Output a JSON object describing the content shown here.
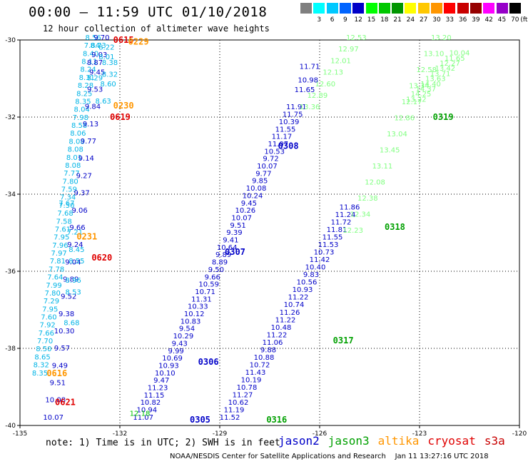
{
  "title": "00:00 – 11:59 UTC 01/10/2018",
  "subtitle": "12 hour collection of altimeter wave heights",
  "legend": {
    "unit_label": "(ft)",
    "entries": [
      {
        "label": "",
        "color": "#7f7f7f"
      },
      {
        "label": "3",
        "color": "#00ffff"
      },
      {
        "label": "6",
        "color": "#00c8ff"
      },
      {
        "label": "9",
        "color": "#0064ff"
      },
      {
        "label": "12",
        "color": "#0000c8"
      },
      {
        "label": "15",
        "color": "#00ff00"
      },
      {
        "label": "18",
        "color": "#00c800"
      },
      {
        "label": "21",
        "color": "#009600"
      },
      {
        "label": "24",
        "color": "#ffff00"
      },
      {
        "label": "27",
        "color": "#ffc800"
      },
      {
        "label": "30",
        "color": "#ff9600"
      },
      {
        "label": "33",
        "color": "#ff0000"
      },
      {
        "label": "36",
        "color": "#c80000"
      },
      {
        "label": "39",
        "color": "#960000"
      },
      {
        "label": "42",
        "color": "#ff00ff"
      },
      {
        "label": "45",
        "color": "#9600c8"
      },
      {
        "label": "70",
        "color": "#000000"
      }
    ]
  },
  "axes": {
    "lon_ticks": [
      "-135",
      "-132",
      "-129",
      "-126",
      "-123",
      "-120"
    ],
    "lat_ticks": [
      "-30",
      "-32",
      "-34",
      "-36",
      "-38",
      "-40"
    ]
  },
  "colors": {
    "jason2": "#0000c8",
    "jason3": "#00a000",
    "jason3_light": "#80ff80",
    "altika": "#ff9600",
    "cryosat": "#e00000",
    "s3a": "#c80000",
    "cyan": "#00b4e6"
  },
  "tracks": [
    {
      "name": "jason2-0305-0308",
      "color": "#0000c8",
      "start": {
        "lon": -131.3,
        "lat": -39.85
      },
      "end": {
        "lon": -126.7,
        "lat": -31.8
      },
      "values": [
        "11.07",
        "10.94",
        "10.82",
        "11.15",
        "11.23",
        "9.47",
        "10.10",
        "10.93",
        "10.69",
        "9.99",
        "9.43",
        "10.29",
        "9.54",
        "10.83",
        "10.12",
        "10.33",
        "11.31",
        "10.71",
        "10.59",
        "9.66",
        "9.50",
        "8.89",
        "9.89",
        "10.64",
        "9.41",
        "9.39",
        "9.51",
        "10.07",
        "10.26",
        "9.45",
        "10.24",
        "10.08",
        "9.85",
        "9.77",
        "10.07",
        "9.72",
        "10.53",
        "11.07",
        "11.17",
        "11.55",
        "10.39",
        "11.75",
        "11.91"
      ]
    },
    {
      "name": "jason2-0316-0318",
      "color": "#0000c8",
      "start": {
        "lon": -128.7,
        "lat": -39.85
      },
      "end": {
        "lon": -125.1,
        "lat": -34.4
      },
      "values": [
        "11.52",
        "11.19",
        "10.62",
        "11.27",
        "10.78",
        "10.19",
        "11.43",
        "10.72",
        "10.88",
        "9.88",
        "11.06",
        "11.22",
        "10.48",
        "11.22",
        "11.26",
        "10.74",
        "11.22",
        "10.93",
        "10.56",
        "9.83",
        "10.40",
        "11.42",
        "10.73",
        "11.53",
        "11.55",
        "11.81",
        "11.72",
        "11.24",
        "11.86"
      ]
    },
    {
      "name": "jason3-0317-0318",
      "color": "#00a000",
      "start": {
        "lon": -126.55,
        "lat": -39.85
      },
      "end": {
        "lon": -125.4,
        "lat": -34.6
      },
      "values": []
    },
    {
      "name": "jason3-0318-0319-light",
      "color": "#80ff80",
      "start": {
        "lon": -125.0,
        "lat": -35.0
      },
      "end": {
        "lon": -122.35,
        "lat": -30.0
      },
      "values": [
        "12.23",
        "12.34",
        "12.38",
        "12.08",
        "13.11",
        "13.45",
        "13.04",
        "12.86",
        "12.17",
        "13.34",
        "12.58",
        "13.10",
        "13.20"
      ]
    },
    {
      "name": "jason3-0308-top-light",
      "color": "#80ff80",
      "start": {
        "lon": -126.3,
        "lat": -31.8
      },
      "end": {
        "lon": -124.9,
        "lat": -30.0
      },
      "values": [
        "13.36",
        "12.89",
        "12.60",
        "12.13",
        "12.01",
        "12.97",
        "12.53"
      ]
    },
    {
      "name": "jason2-0319-top",
      "color": "#0000c8",
      "start": {
        "lon": -121.5,
        "lat": -30.1
      },
      "end": {
        "lon": -121.5,
        "lat": -30.1
      },
      "values": []
    },
    {
      "name": "jason3-0319-top-light",
      "color": "#80ff80",
      "start": {
        "lon": -123.1,
        "lat": -31.6
      },
      "end": {
        "lon": -121.8,
        "lat": -30.4
      },
      "values": [
        "13.22",
        "14.25",
        "14.37",
        "14.40",
        "13.63",
        "13.71",
        "13.42",
        "12.27",
        "11.65",
        "10.04"
      ]
    },
    {
      "name": "cyan-0615-0621",
      "color": "#00b4e6",
      "start": {
        "lon": -134.4,
        "lat": -38.7
      },
      "end": {
        "lon": -132.8,
        "lat": -30.0
      },
      "values": [
        "8.35",
        "8.32",
        "8.65",
        "8.50",
        "7.70",
        "7.66",
        "7.92",
        "7.60",
        "7.95",
        "7.29",
        "7.80",
        "7.99",
        "7.64",
        "7.78",
        "7.81",
        "7.97",
        "7.96",
        "7.95",
        "7.61",
        "7.58",
        "7.68",
        "7.50",
        "7.34",
        "7.59",
        "7.80",
        "7.77",
        "8.08",
        "8.01",
        "8.08",
        "8.08",
        "8.06",
        "8.58",
        "7.98",
        "8.04",
        "8.35",
        "8.25",
        "8.28",
        "8.31",
        "8.24",
        "8.11",
        "8.40",
        "7.84",
        "8.56"
      ]
    },
    {
      "name": "blue-0615-0621",
      "color": "#0000c8",
      "start": {
        "lon": -134.0,
        "lat": -39.85
      },
      "end": {
        "lon": -132.55,
        "lat": -30.0
      },
      "values": [
        "10.07",
        "10.08",
        "9.51",
        "9.49",
        "9.57",
        "10.30",
        "9.38",
        "9.52",
        "9.89",
        "9.04",
        "9.24",
        "9.66",
        "9.06",
        "9.37",
        "9.27",
        "9.14",
        "9.77",
        "9.13",
        "9.84",
        "9.53",
        "9.45",
        "9.03",
        "9.70"
      ]
    }
  ],
  "extra_labels": [
    {
      "text": "11.71",
      "lon": -126.3,
      "lat": -30.75,
      "color": "#0000c8"
    },
    {
      "text": "11.65",
      "lon": -126.45,
      "lat": -31.35,
      "color": "#0000c8"
    },
    {
      "text": "10.98",
      "lon": -126.35,
      "lat": -31.1,
      "color": "#0000c8"
    },
    {
      "text": "8.73",
      "lon": -132.65,
      "lat": -30.2,
      "color": "#00b4e6"
    },
    {
      "text": "8.22",
      "lon": -132.4,
      "lat": -30.25,
      "color": "#00b4e6"
    },
    {
      "text": "8.01",
      "lon": -132.4,
      "lat": -30.5,
      "color": "#00b4e6"
    },
    {
      "text": "8.38",
      "lon": -132.3,
      "lat": -30.65,
      "color": "#00b4e6"
    },
    {
      "text": "8.32",
      "lon": -132.3,
      "lat": -30.95,
      "color": "#00b4e6"
    },
    {
      "text": "8.60",
      "lon": -132.35,
      "lat": -31.2,
      "color": "#00b4e6"
    },
    {
      "text": "8.87",
      "lon": -132.75,
      "lat": -30.65,
      "color": "#0000c8"
    },
    {
      "text": "8.29",
      "lon": -132.75,
      "lat": -31.05,
      "color": "#00b4e6"
    },
    {
      "text": "8.63",
      "lon": -132.5,
      "lat": -31.65,
      "color": "#00b4e6"
    },
    {
      "text": "7.67",
      "lon": -133.6,
      "lat": -34.3,
      "color": "#00b4e6"
    },
    {
      "text": "7.21",
      "lon": -133.35,
      "lat": -35.05,
      "color": "#00b4e6"
    },
    {
      "text": "8.45",
      "lon": -133.3,
      "lat": -35.5,
      "color": "#00b4e6"
    },
    {
      "text": "8.55",
      "lon": -133.3,
      "lat": -35.8,
      "color": "#00b4e6"
    },
    {
      "text": "8.96",
      "lon": -133.4,
      "lat": -36.3,
      "color": "#00b4e6"
    },
    {
      "text": "8.53",
      "lon": -133.4,
      "lat": -36.6,
      "color": "#00b4e6"
    },
    {
      "text": "8.68",
      "lon": -133.45,
      "lat": -37.4,
      "color": "#00b4e6"
    }
  ],
  "pass_labels": [
    {
      "text": "0615",
      "lon": -132.2,
      "lat": -30.0,
      "color": "#e00000"
    },
    {
      "text": "0229",
      "lon": -131.75,
      "lat": -30.05,
      "color": "#ff9600"
    },
    {
      "text": "0230",
      "lon": -132.2,
      "lat": -31.7,
      "color": "#ff9600"
    },
    {
      "text": "0619",
      "lon": -132.3,
      "lat": -32.0,
      "color": "#e00000"
    },
    {
      "text": "0231",
      "lon": -133.3,
      "lat": -35.1,
      "color": "#ff9600"
    },
    {
      "text": "0620",
      "lon": -132.85,
      "lat": -35.65,
      "color": "#e00000"
    },
    {
      "text": "0621",
      "lon": -133.95,
      "lat": -39.4,
      "color": "#e00000"
    },
    {
      "text": "0616",
      "lon": -134.2,
      "lat": -38.65,
      "color": "#ff9600"
    },
    {
      "text": "0305",
      "lon": -129.9,
      "lat": -39.85,
      "color": "#0000c8"
    },
    {
      "text": "0306",
      "lon": -129.65,
      "lat": -38.35,
      "color": "#0000c8"
    },
    {
      "text": "0307",
      "lon": -128.85,
      "lat": -35.5,
      "color": "#0000c8"
    },
    {
      "text": "0308",
      "lon": -127.25,
      "lat": -32.75,
      "color": "#0000c8"
    },
    {
      "text": "0316",
      "lon": -127.6,
      "lat": -39.85,
      "color": "#00a000"
    },
    {
      "text": "0317",
      "lon": -125.6,
      "lat": -37.8,
      "color": "#00a000"
    },
    {
      "text": "0318",
      "lon": -124.05,
      "lat": -34.85,
      "color": "#00a000"
    },
    {
      "text": "0319",
      "lon": -122.6,
      "lat": -32.0,
      "color": "#00a000"
    }
  ],
  "note": "note: 1) Time is in UTC; 2) SWH is in feet",
  "satellites": [
    {
      "label": "jason2",
      "color": "#0000c8"
    },
    {
      "label": "jason3",
      "color": "#00a000"
    },
    {
      "label": "altika",
      "color": "#ff9600"
    },
    {
      "label": "cryosat",
      "color": "#e00000"
    },
    {
      "label": "s3a",
      "color": "#c80000"
    }
  ],
  "credit": "NOAA/NESDIS Center for Satellite Applications and Research    Jan 11 13:27:16 UTC 2018",
  "green_extras": [
    {
      "text": "12.18",
      "lon": -131.4,
      "lat": -39.75,
      "color": "#00c800"
    }
  ]
}
